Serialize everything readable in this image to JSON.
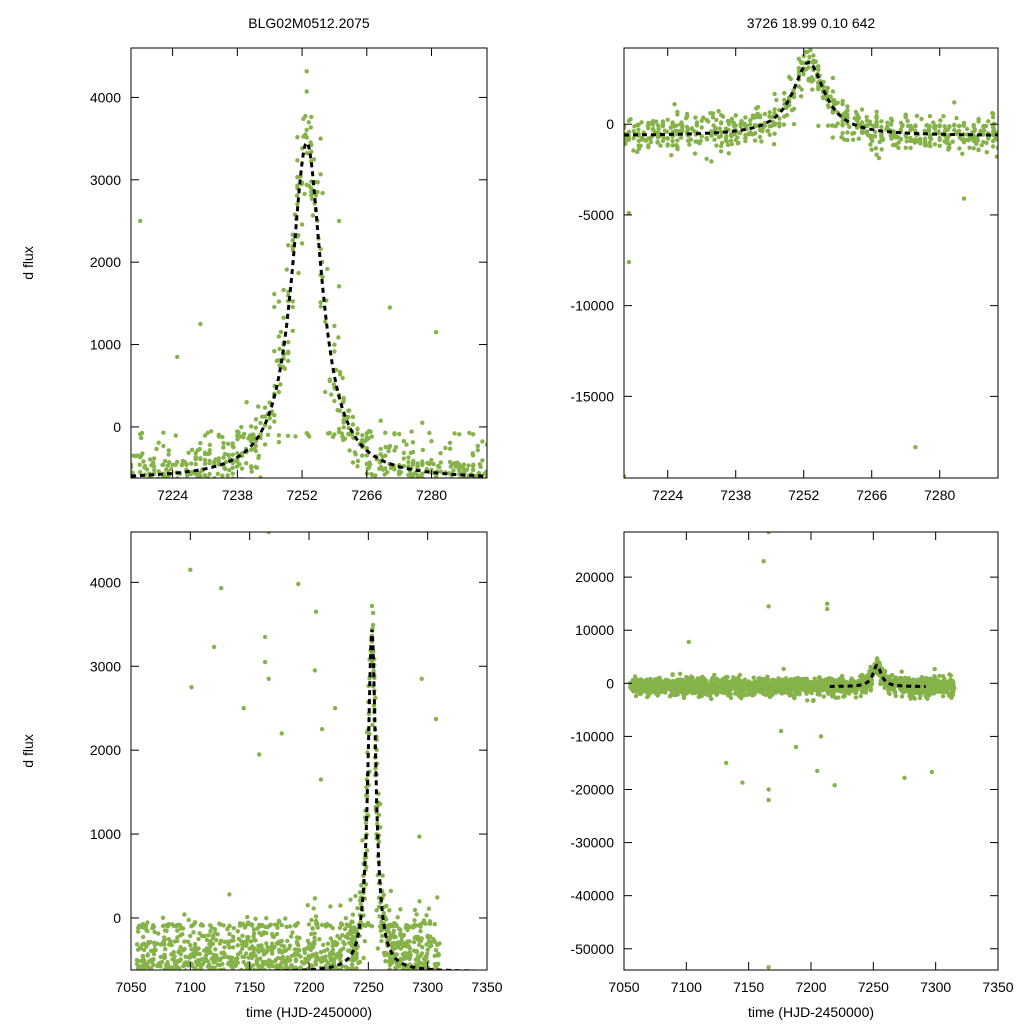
{
  "point_color": "#86b24a",
  "fit_color": "#000000",
  "chart_data": [
    {
      "type": "scatter",
      "title": "BLG02M0512.2075",
      "xlabel": "",
      "ylabel": "d flux",
      "xlim": [
        7215,
        7292
      ],
      "ylim": [
        -620,
        4600
      ],
      "xticks": [
        7224,
        7238,
        7252,
        7266,
        7280
      ],
      "yticks": [
        0,
        1000,
        2000,
        3000,
        4000
      ],
      "fit": {
        "t0": 7253,
        "peak": 3450,
        "tau": 4.0,
        "base": -640
      },
      "scatter_model": {
        "x_range": [
          7215,
          7292
        ],
        "n": 700,
        "noise": 180,
        "peak_noise": 450
      },
      "points": [
        [
          7217,
          2500
        ],
        [
          7225,
          850
        ],
        [
          7230,
          1250
        ],
        [
          7240,
          300
        ],
        [
          7256,
          3500
        ],
        [
          7260,
          2500
        ],
        [
          7271,
          1450
        ],
        [
          7281,
          1150
        ],
        [
          7278,
          50
        ],
        [
          7289,
          -90
        ],
        [
          7286,
          -90
        ]
      ]
    },
    {
      "type": "scatter",
      "title": "3726  18.99  0.10  642",
      "xlabel": "",
      "ylabel": "",
      "xlim": [
        7215,
        7292
      ],
      "ylim": [
        -19500,
        4200
      ],
      "xticks": [
        7224,
        7238,
        7252,
        7266,
        7280
      ],
      "yticks": [
        0,
        -5000,
        -10000,
        -15000
      ],
      "fit": {
        "t0": 7253,
        "peak": 3400,
        "tau": 4.0,
        "base": -640
      },
      "scatter_model": {
        "x_range": [
          7215,
          7292
        ],
        "n": 700,
        "noise": 500,
        "peak_noise": 600
      },
      "points": [
        [
          7216,
          -4900
        ],
        [
          7216,
          -7600
        ],
        [
          7215,
          -19400
        ],
        [
          7275,
          -17800
        ],
        [
          7285,
          -4100
        ],
        [
          7250,
          0
        ],
        [
          7283,
          1200
        ]
      ]
    },
    {
      "type": "scatter",
      "title": "",
      "xlabel": "time (HJD-2450000)",
      "ylabel": "d flux",
      "xlim": [
        7050,
        7350
      ],
      "ylim": [
        -620,
        4600
      ],
      "xticks": [
        7050,
        7100,
        7150,
        7200,
        7250,
        7300,
        7350
      ],
      "yticks": [
        0,
        1000,
        2000,
        3000,
        4000
      ],
      "fit": {
        "t0": 7253,
        "peak": 3450,
        "tau": 4.0,
        "base": -640
      },
      "scatter_model": {
        "x_range": [
          7055,
          7310
        ],
        "n": 1800,
        "noise": 260,
        "peak_noise": 450
      },
      "points": [
        [
          7100,
          4150
        ],
        [
          7126,
          3930
        ],
        [
          7120,
          3230
        ],
        [
          7101,
          2750
        ],
        [
          7166,
          4600
        ],
        [
          7163,
          3350
        ],
        [
          7163,
          3050
        ],
        [
          7166,
          2850
        ],
        [
          7191,
          3980
        ],
        [
          7205,
          2950
        ],
        [
          7206,
          3650
        ],
        [
          7211,
          2250
        ],
        [
          7222,
          2500
        ],
        [
          7295,
          2850
        ],
        [
          7307,
          2370
        ],
        [
          7293,
          970
        ],
        [
          7145,
          2500
        ],
        [
          7158,
          1950
        ],
        [
          7177,
          2200
        ],
        [
          7210,
          1650
        ]
      ]
    },
    {
      "type": "scatter",
      "title": "",
      "xlabel": "time (HJD-2450000)",
      "ylabel": "",
      "xlim": [
        7050,
        7350
      ],
      "ylim": [
        -54000,
        28500
      ],
      "xticks": [
        7050,
        7100,
        7150,
        7200,
        7250,
        7300,
        7350
      ],
      "yticks": [
        20000,
        10000,
        0,
        -10000,
        -20000,
        -30000,
        -40000,
        -50000
      ],
      "fit": {
        "t0": 7253,
        "peak": 3400,
        "tau": 4.0,
        "base": -640,
        "x_range": [
          7215,
          7292
        ]
      },
      "scatter_model": {
        "x_range": [
          7055,
          7315
        ],
        "n": 1800,
        "noise": 900,
        "peak_noise": 800
      },
      "points": [
        [
          7166,
          28500
        ],
        [
          7162,
          23000
        ],
        [
          7166,
          14500
        ],
        [
          7213,
          15000
        ],
        [
          7213,
          14000
        ],
        [
          7102,
          7800
        ],
        [
          7166,
          -20000
        ],
        [
          7166,
          -22000
        ],
        [
          7145,
          -18700
        ],
        [
          7132,
          -15000
        ],
        [
          7188,
          -12000
        ],
        [
          7219,
          -19200
        ],
        [
          7205,
          -16500
        ],
        [
          7275,
          -17800
        ],
        [
          7297,
          -16700
        ],
        [
          7166,
          -53500
        ],
        [
          7176,
          -9000
        ],
        [
          7208,
          -10000
        ]
      ]
    }
  ]
}
